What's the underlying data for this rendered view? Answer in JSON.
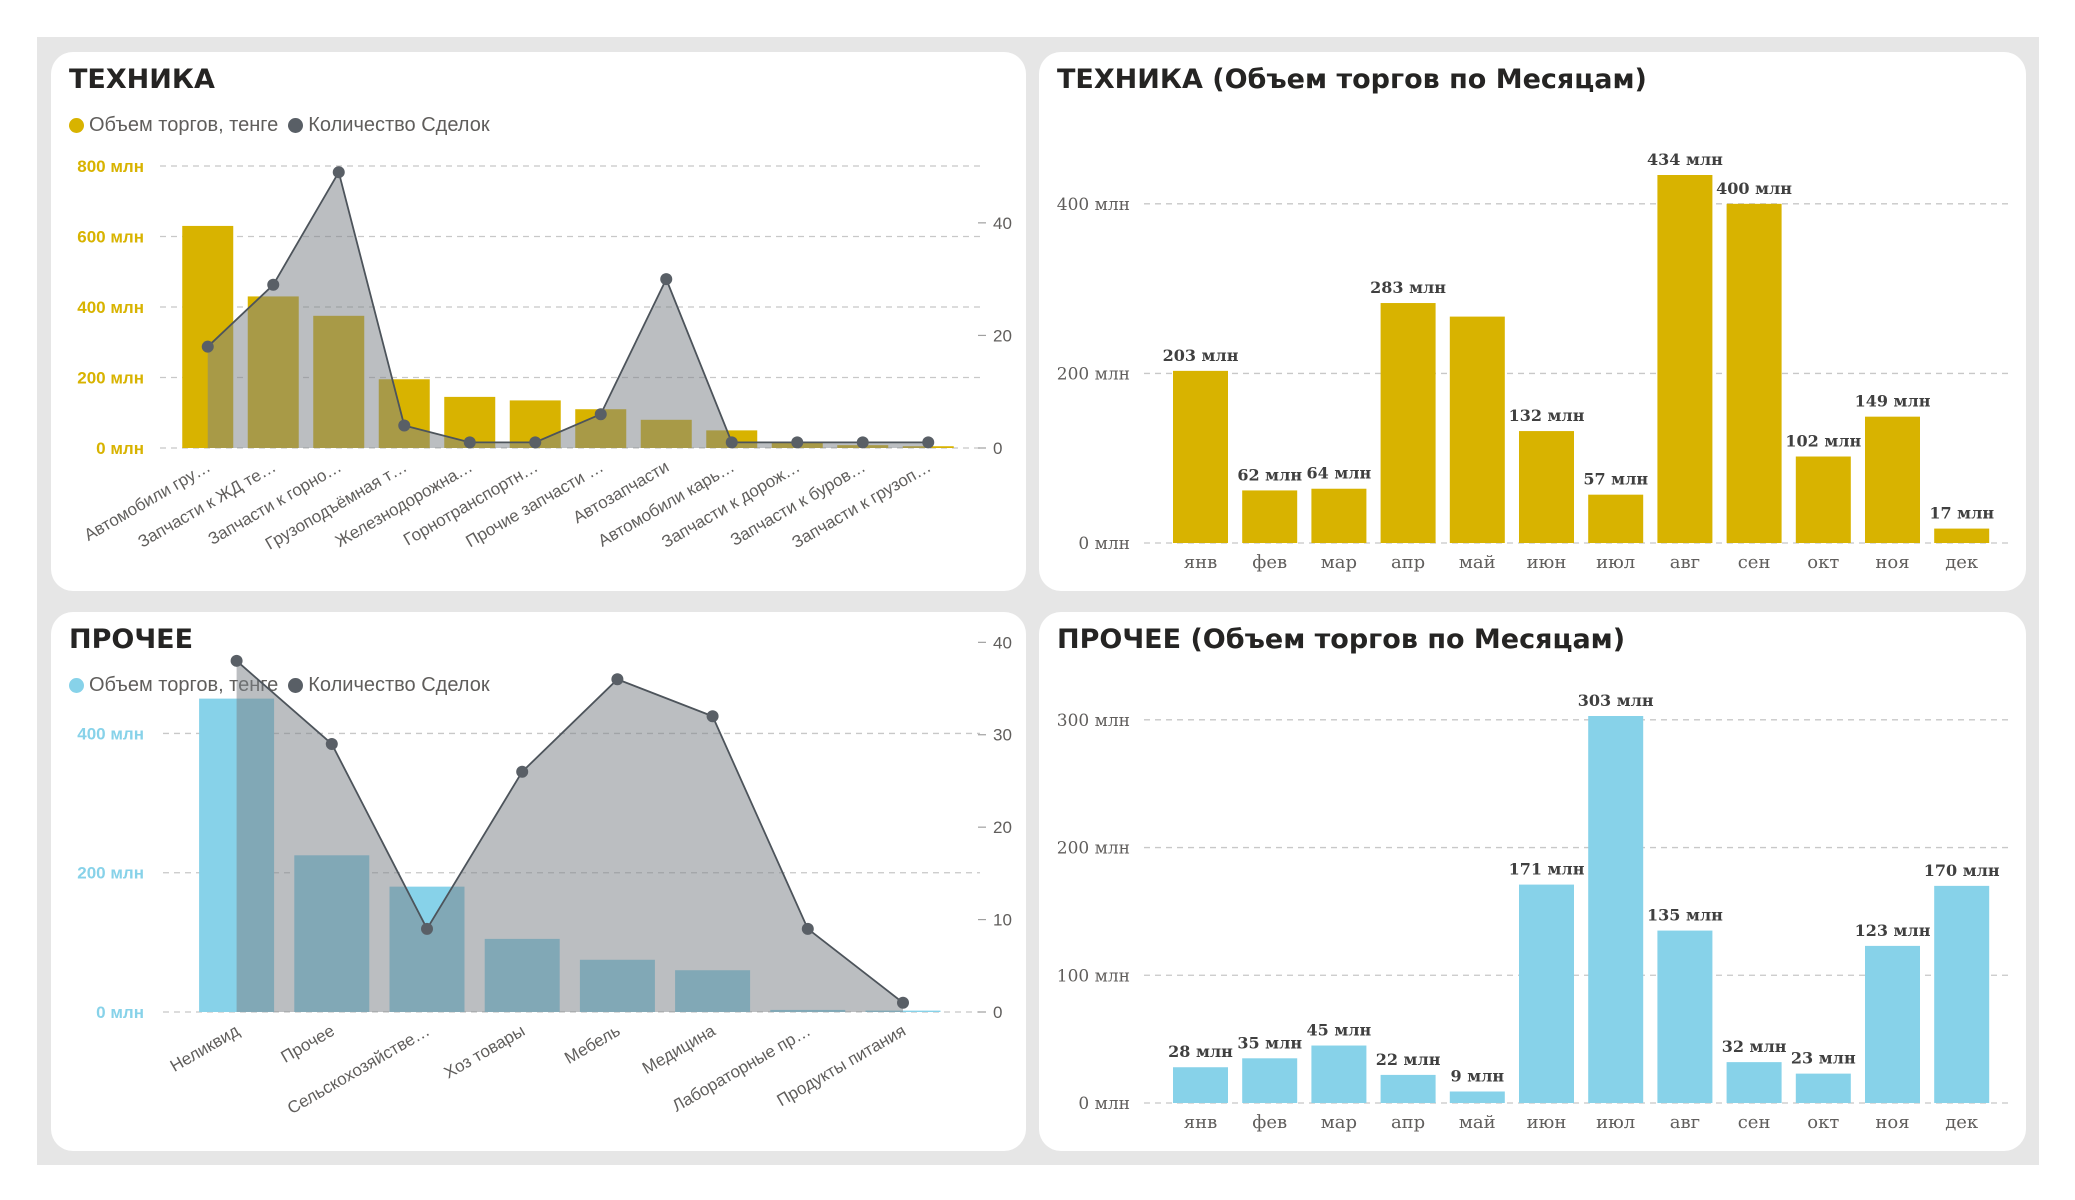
{
  "colors": {
    "gold": "#d8b300",
    "blue": "#87d2e9",
    "count": "#595f66",
    "area": "#9ea2a7"
  },
  "combo_legend": {
    "volume": "Объем торгов, тенге",
    "count": "Количество Сделок"
  },
  "chart_data": [
    {
      "id": "tech_combo",
      "type": "bar+line",
      "title": "ТЕХНИКА",
      "categories": [
        "Автомобили гру…",
        "Запчасти к ЖД те…",
        "Запчасти к горно…",
        "Грузоподъёмная т…",
        "Железнодорожна…",
        "Горнотранспортн…",
        "Прочие запчасти …",
        "Автозапчасти",
        "Автомобили карь…",
        "Запчасти к дорож…",
        "Запчасти к буров…",
        "Запчасти к грузоп…"
      ],
      "series": [
        {
          "name": "Объем торгов, тенге",
          "axis": "left",
          "values": [
            630,
            430,
            375,
            195,
            145,
            135,
            110,
            80,
            50,
            15,
            8,
            5
          ]
        },
        {
          "name": "Количество Сделок",
          "axis": "right",
          "values": [
            18,
            29,
            49,
            4,
            1,
            1,
            6,
            30,
            1,
            1,
            1,
            1
          ]
        }
      ],
      "y_left": {
        "ticks": [
          "0 млн",
          "200 млн",
          "400 млн",
          "600 млн",
          "800 млн"
        ],
        "values": [
          0,
          200,
          400,
          600,
          800
        ],
        "range": [
          0,
          800
        ]
      },
      "y_right": {
        "ticks": [
          "0",
          "20",
          "40"
        ],
        "values": [
          0,
          20,
          40
        ],
        "range": [
          0,
          50.1
        ]
      }
    },
    {
      "id": "tech_months",
      "type": "bar",
      "title": "ТЕХНИКА (Объем торгов по Месяцам)",
      "categories": [
        "янв",
        "фев",
        "мар",
        "апр",
        "май",
        "июн",
        "июл",
        "авг",
        "сен",
        "окт",
        "ноя",
        "дек"
      ],
      "values": [
        203,
        62,
        64,
        283,
        267,
        132,
        57,
        434,
        400,
        102,
        149,
        17
      ],
      "data_labels": [
        "203 млн",
        "62 млн",
        "64 млн",
        "283 млн",
        "",
        "132 млн",
        "57 млн",
        "434 млн",
        "400 млн",
        "102 млн",
        "149 млн",
        "17 млн"
      ],
      "y": {
        "ticks": [
          "0 млн",
          "200 млн",
          "400 млн"
        ],
        "values": [
          0,
          200,
          400
        ],
        "range": [
          0,
          434
        ]
      }
    },
    {
      "id": "other_combo",
      "type": "bar+line",
      "title": "ПРОЧЕЕ",
      "categories": [
        "Неликвид",
        "Прочее",
        "Сельскохозяйстве…",
        "Хоз товары",
        "Мебель",
        "Медицина",
        "Лабораторные пр…",
        "Продукты питания"
      ],
      "series": [
        {
          "name": "Объем торгов, тенге",
          "axis": "left",
          "values": [
            450,
            225,
            180,
            105,
            75,
            60,
            3,
            2
          ]
        },
        {
          "name": "Количество Сделок",
          "axis": "right",
          "values": [
            38,
            29,
            9,
            26,
            36,
            32,
            9,
            1
          ]
        }
      ],
      "y_left": {
        "ticks": [
          "0 млн",
          "200 млн",
          "400 млн"
        ],
        "values": [
          0,
          200,
          400
        ],
        "range": [
          0,
          560
        ]
      },
      "y_right": {
        "ticks": [
          "0",
          "10",
          "20",
          "30",
          "40"
        ],
        "values": [
          0,
          10,
          20,
          30,
          40
        ],
        "range": [
          0,
          42.2
        ]
      }
    },
    {
      "id": "other_months",
      "type": "bar",
      "title": "ПРОЧЕЕ (Объем торгов по Месяцам)",
      "categories": [
        "янв",
        "фев",
        "мар",
        "апр",
        "май",
        "июн",
        "июл",
        "авг",
        "сен",
        "окт",
        "ноя",
        "дек"
      ],
      "values": [
        28,
        35,
        45,
        22,
        9,
        171,
        303,
        135,
        32,
        23,
        123,
        170
      ],
      "data_labels": [
        "28 млн",
        "35 млн",
        "45 млн",
        "22 млн",
        "9 млн",
        "171 млн",
        "303 млн",
        "135 млн",
        "32 млн",
        "23 млн",
        "123 млн",
        "170 млн"
      ],
      "y": {
        "ticks": [
          "0 млн",
          "100 млн",
          "200 млн",
          "300 млн"
        ],
        "values": [
          0,
          100,
          200,
          300
        ],
        "range": [
          0,
          303
        ]
      }
    }
  ]
}
